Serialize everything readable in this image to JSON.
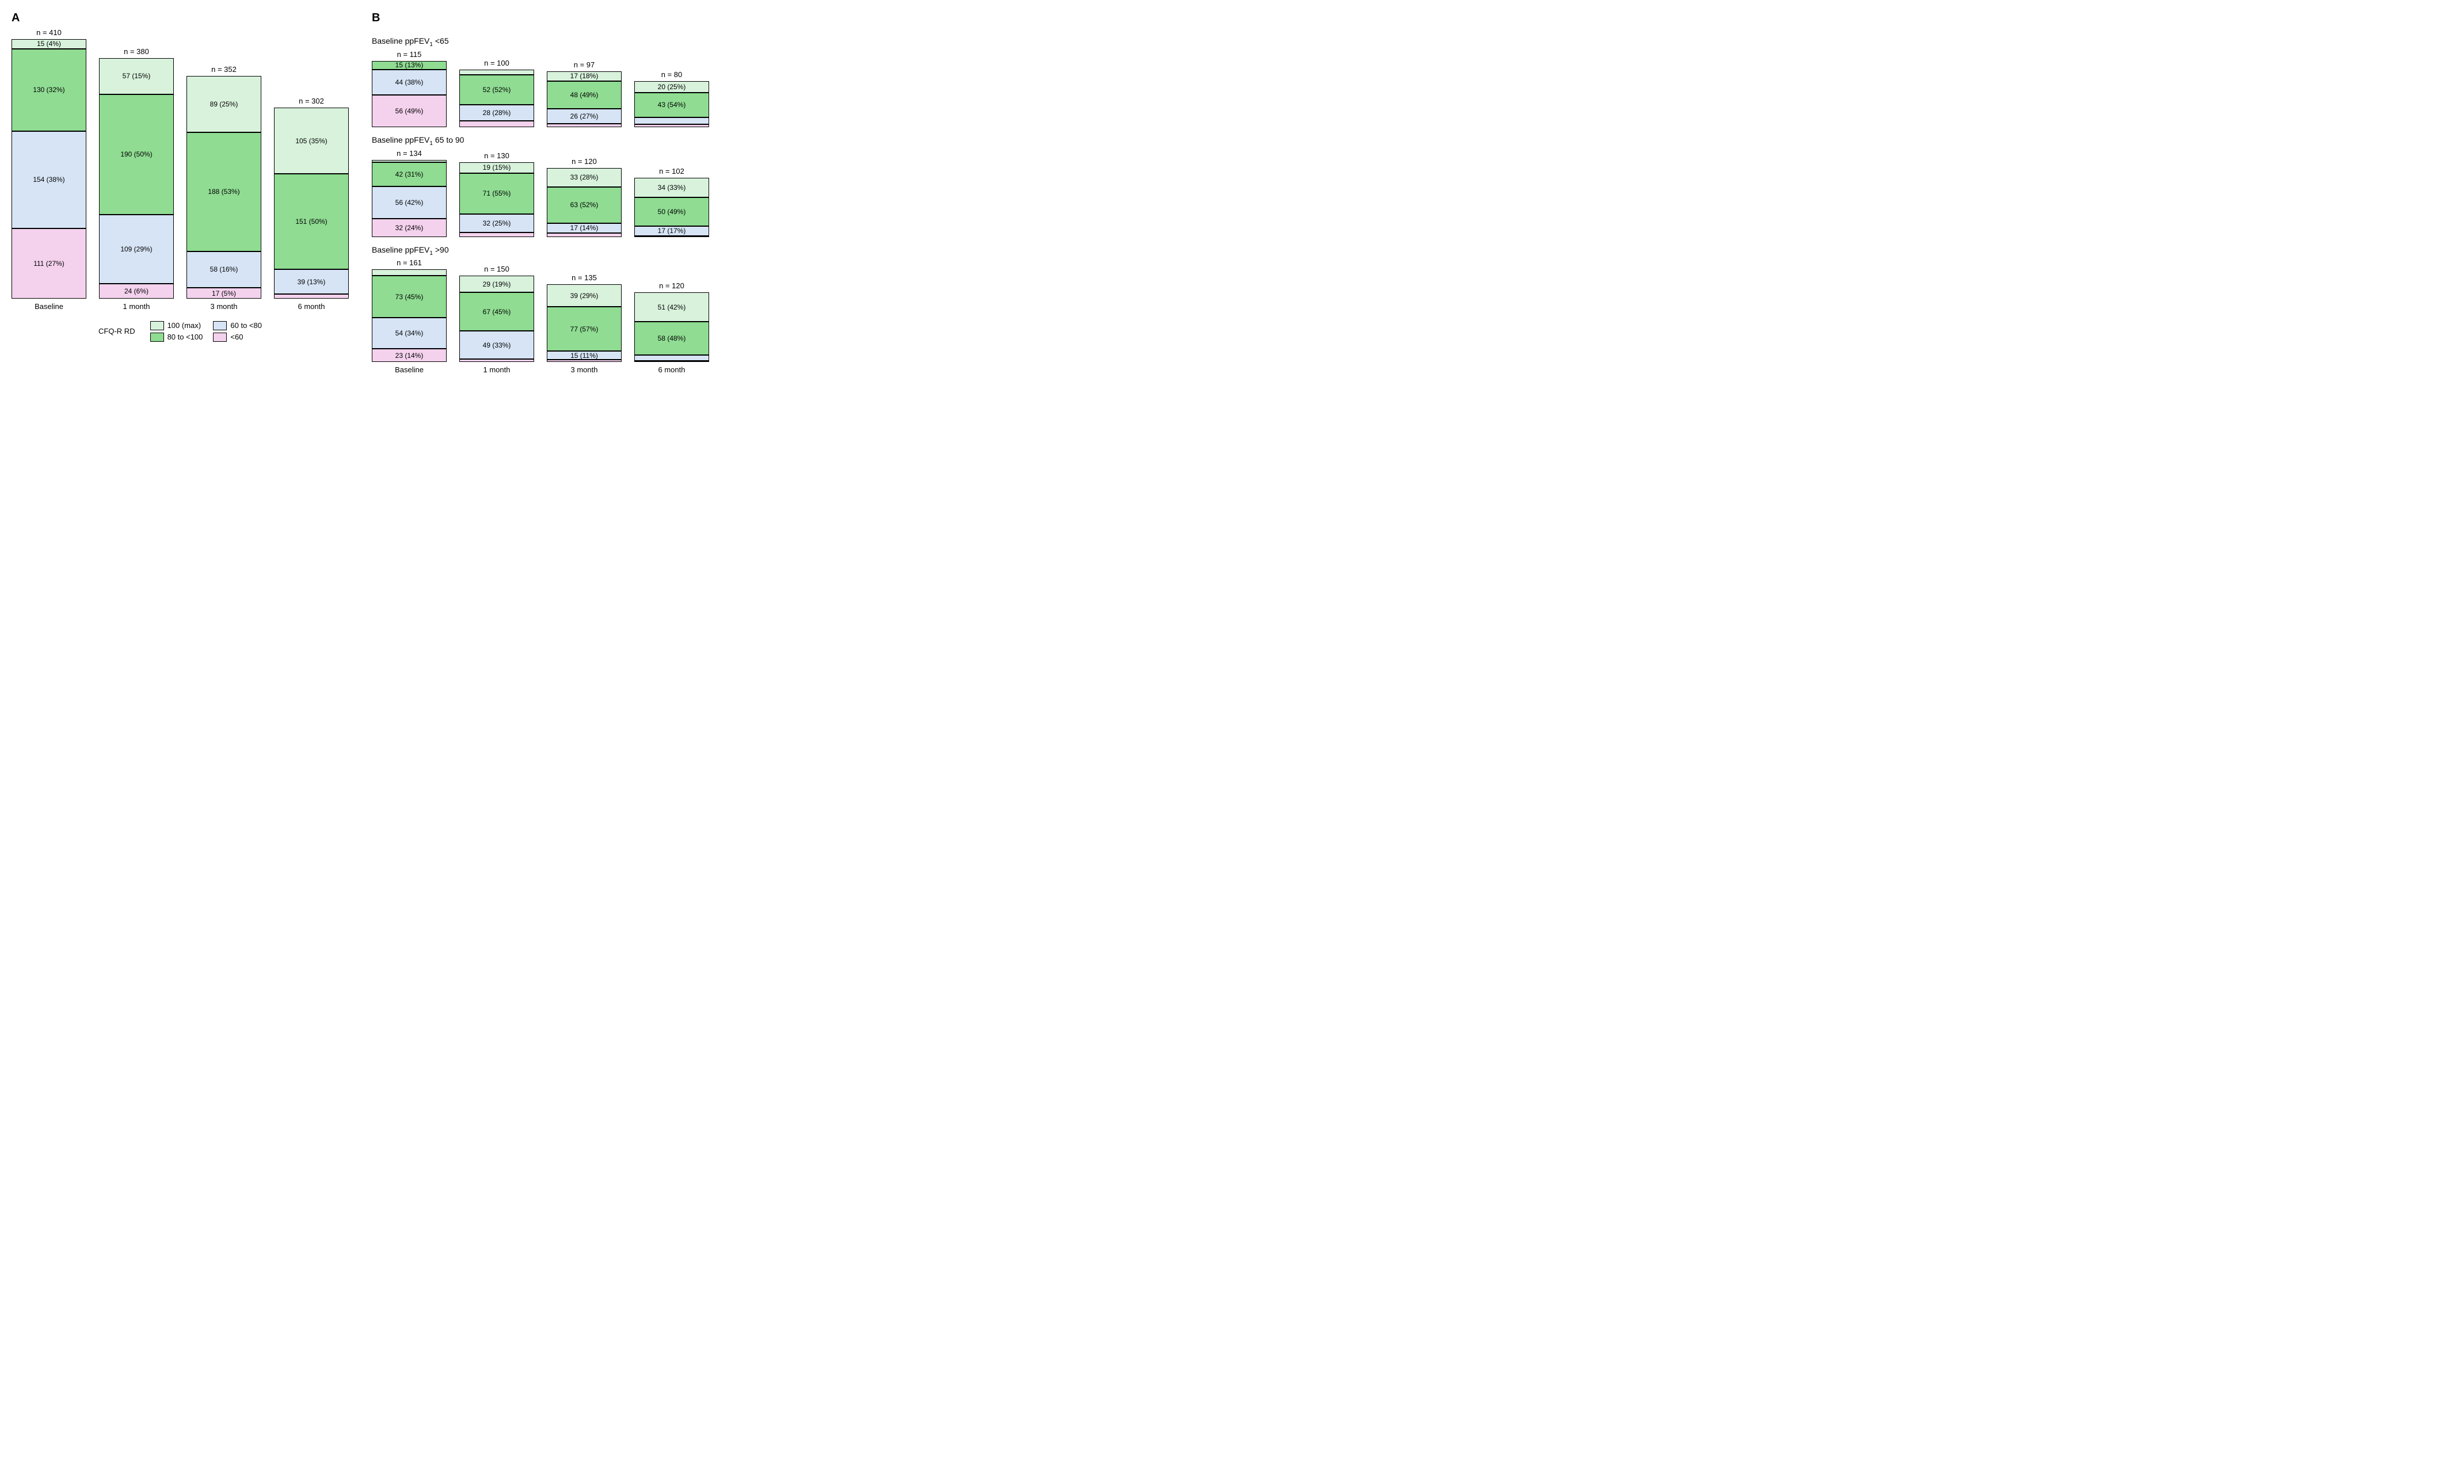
{
  "colors": {
    "l100": "#d8f2dc",
    "l80": "#8fdc92",
    "l60": "#d6e4f5",
    "llt": "#f4d1ed",
    "stroke": "#000000"
  },
  "legend": {
    "title": "CFQ-R RD",
    "items": [
      {
        "key": "l100",
        "label": "100 (max)"
      },
      {
        "key": "l80",
        "label": "80 to <100"
      },
      {
        "key": "l60",
        "label": "60 to <80"
      },
      {
        "key": "llt",
        "label": "<60"
      }
    ]
  },
  "panelA": {
    "label": "A",
    "barWidthPx": 130,
    "pxPerUnit": 1.1,
    "gapPx": 22,
    "maxN": 410,
    "timepoints": [
      "Baseline",
      "1 month",
      "3 month",
      "6 month"
    ],
    "bars": [
      {
        "n": 410,
        "segs": [
          {
            "k": "l100",
            "v": 15,
            "p": 4
          },
          {
            "k": "l80",
            "v": 130,
            "p": 32
          },
          {
            "k": "l60",
            "v": 154,
            "p": 38
          },
          {
            "k": "llt",
            "v": 111,
            "p": 27
          }
        ]
      },
      {
        "n": 380,
        "segs": [
          {
            "k": "l100",
            "v": 57,
            "p": 15
          },
          {
            "k": "l80",
            "v": 190,
            "p": 50
          },
          {
            "k": "l60",
            "v": 109,
            "p": 29
          },
          {
            "k": "llt",
            "v": 24,
            "p": 6
          }
        ]
      },
      {
        "n": 352,
        "segs": [
          {
            "k": "l100",
            "v": 89,
            "p": 25
          },
          {
            "k": "l80",
            "v": 188,
            "p": 53
          },
          {
            "k": "l60",
            "v": 58,
            "p": 16
          },
          {
            "k": "llt",
            "v": 17,
            "p": 5
          }
        ]
      },
      {
        "n": 302,
        "segs": [
          {
            "k": "l100",
            "v": 105,
            "p": 35
          },
          {
            "k": "l80",
            "v": 151,
            "p": 50
          },
          {
            "k": "l60",
            "v": 39,
            "p": 13
          },
          {
            "k": "llt",
            "v": 7,
            "p": 2
          }
        ]
      }
    ]
  },
  "panelB": {
    "label": "B",
    "barWidthPx": 130,
    "pxPerUnit": 1.0,
    "gapPx": 22,
    "maxN": 161,
    "timepoints": [
      "Baseline",
      "1 month",
      "3 month",
      "6 month"
    ],
    "groups": [
      {
        "title": "Baseline ppFEV₁ <65",
        "bars": [
          {
            "n": 115,
            "segs": [
              {
                "k": "l100",
                "v": 0,
                "p": 0
              },
              {
                "k": "l80",
                "v": 15,
                "p": 13
              },
              {
                "k": "l60",
                "v": 44,
                "p": 38
              },
              {
                "k": "llt",
                "v": 56,
                "p": 49
              }
            ]
          },
          {
            "n": 100,
            "segs": [
              {
                "k": "l100",
                "v": 9,
                "p": 9
              },
              {
                "k": "l80",
                "v": 52,
                "p": 52
              },
              {
                "k": "l60",
                "v": 28,
                "p": 28
              },
              {
                "k": "llt",
                "v": 11,
                "p": 11
              }
            ]
          },
          {
            "n": 97,
            "segs": [
              {
                "k": "l100",
                "v": 17,
                "p": 18
              },
              {
                "k": "l80",
                "v": 48,
                "p": 49
              },
              {
                "k": "l60",
                "v": 26,
                "p": 27
              },
              {
                "k": "llt",
                "v": 6,
                "p": 6
              }
            ]
          },
          {
            "n": 80,
            "segs": [
              {
                "k": "l100",
                "v": 20,
                "p": 25
              },
              {
                "k": "l80",
                "v": 43,
                "p": 54
              },
              {
                "k": "l60",
                "v": 12,
                "p": 15
              },
              {
                "k": "llt",
                "v": 5,
                "p": 6
              }
            ]
          }
        ]
      },
      {
        "title": "Baseline ppFEV₁ 65 to 90",
        "bars": [
          {
            "n": 134,
            "segs": [
              {
                "k": "l100",
                "v": 4,
                "p": 3
              },
              {
                "k": "l80",
                "v": 42,
                "p": 31
              },
              {
                "k": "l60",
                "v": 56,
                "p": 42
              },
              {
                "k": "llt",
                "v": 32,
                "p": 24
              }
            ]
          },
          {
            "n": 130,
            "segs": [
              {
                "k": "l100",
                "v": 19,
                "p": 15
              },
              {
                "k": "l80",
                "v": 71,
                "p": 55
              },
              {
                "k": "l60",
                "v": 32,
                "p": 25
              },
              {
                "k": "llt",
                "v": 8,
                "p": 6
              }
            ]
          },
          {
            "n": 120,
            "segs": [
              {
                "k": "l100",
                "v": 33,
                "p": 28
              },
              {
                "k": "l80",
                "v": 63,
                "p": 52
              },
              {
                "k": "l60",
                "v": 17,
                "p": 14
              },
              {
                "k": "llt",
                "v": 7,
                "p": 6
              }
            ]
          },
          {
            "n": 102,
            "segs": [
              {
                "k": "l100",
                "v": 34,
                "p": 33
              },
              {
                "k": "l80",
                "v": 50,
                "p": 49
              },
              {
                "k": "l60",
                "v": 17,
                "p": 17
              },
              {
                "k": "llt",
                "v": 1,
                "p": 1
              }
            ]
          }
        ]
      },
      {
        "title": "Baseline ppFEV₁ >90",
        "bars": [
          {
            "n": 161,
            "segs": [
              {
                "k": "l100",
                "v": 11,
                "p": 7
              },
              {
                "k": "l80",
                "v": 73,
                "p": 45
              },
              {
                "k": "l60",
                "v": 54,
                "p": 34
              },
              {
                "k": "llt",
                "v": 23,
                "p": 14
              }
            ]
          },
          {
            "n": 150,
            "segs": [
              {
                "k": "l100",
                "v": 29,
                "p": 19
              },
              {
                "k": "l80",
                "v": 67,
                "p": 45
              },
              {
                "k": "l60",
                "v": 49,
                "p": 33
              },
              {
                "k": "llt",
                "v": 5,
                "p": 3
              }
            ]
          },
          {
            "n": 135,
            "segs": [
              {
                "k": "l100",
                "v": 39,
                "p": 29
              },
              {
                "k": "l80",
                "v": 77,
                "p": 57
              },
              {
                "k": "l60",
                "v": 15,
                "p": 11
              },
              {
                "k": "llt",
                "v": 4,
                "p": 3
              }
            ]
          },
          {
            "n": 120,
            "segs": [
              {
                "k": "l100",
                "v": 51,
                "p": 42
              },
              {
                "k": "l80",
                "v": 58,
                "p": 48
              },
              {
                "k": "l60",
                "v": 10,
                "p": 8
              },
              {
                "k": "llt",
                "v": 1,
                "p": 1
              }
            ]
          }
        ]
      }
    ]
  }
}
